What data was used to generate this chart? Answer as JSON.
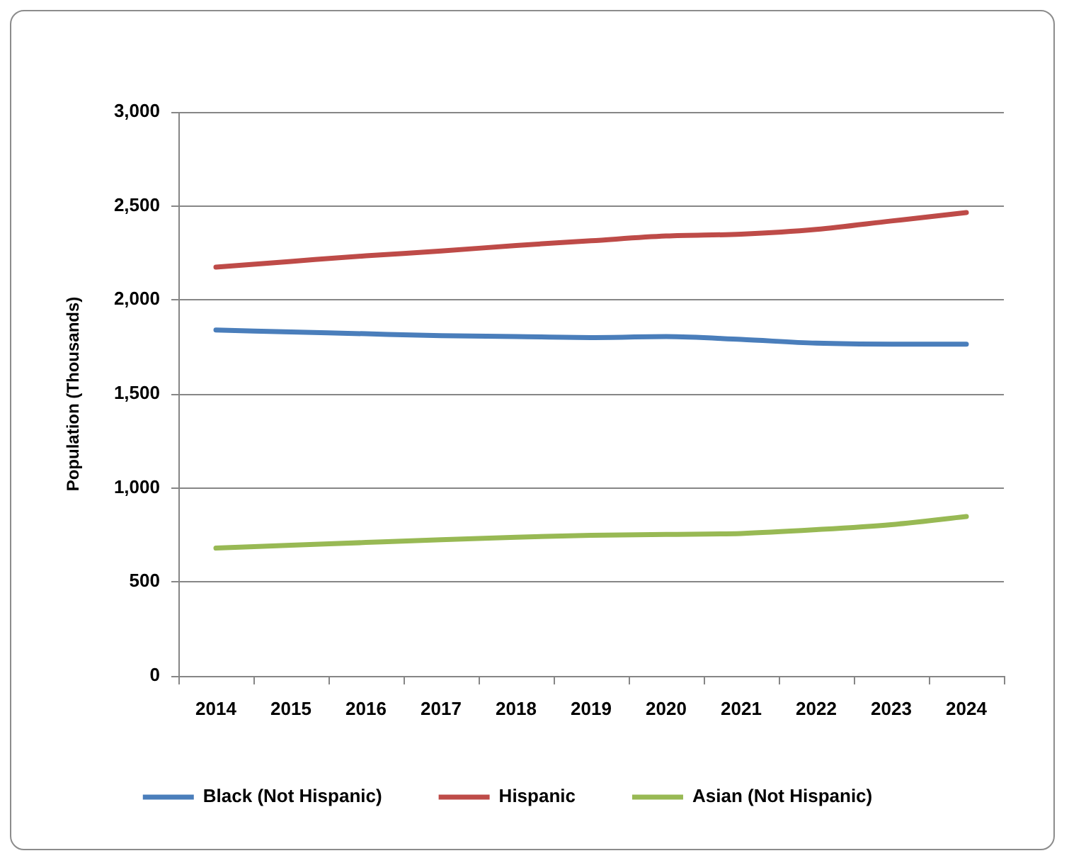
{
  "chart_data": {
    "type": "line",
    "ylabel": "Population (Thousands)",
    "categories": [
      "2014",
      "2015",
      "2016",
      "2017",
      "2018",
      "2019",
      "2020",
      "2021",
      "2022",
      "2023",
      "2024"
    ],
    "series": [
      {
        "name": "Black (Not Hispanic)",
        "color": "#4a7ebb",
        "values": [
          1840,
          1830,
          1820,
          1810,
          1805,
          1800,
          1805,
          1790,
          1770,
          1765,
          1765
        ]
      },
      {
        "name": "Hispanic",
        "color": "#be4b48",
        "values": [
          2175,
          2205,
          2235,
          2260,
          2290,
          2315,
          2340,
          2350,
          2375,
          2420,
          2465
        ]
      },
      {
        "name": "Asian (Not Hispanic)",
        "color": "#98b954",
        "values": [
          680,
          695,
          710,
          725,
          738,
          748,
          753,
          758,
          778,
          805,
          848
        ]
      }
    ],
    "ylim": [
      0,
      3000
    ],
    "yticks": [
      0,
      500,
      {
        "value": 1000,
        "label": "1,000"
      },
      {
        "value": 1500,
        "label": "1,500"
      },
      {
        "value": 2000,
        "label": "2,000"
      },
      {
        "value": 2500,
        "label": "2,500"
      },
      {
        "value": 3000,
        "label": "3,000"
      }
    ],
    "grid": "y",
    "legend": "bottom",
    "marker": "none"
  }
}
